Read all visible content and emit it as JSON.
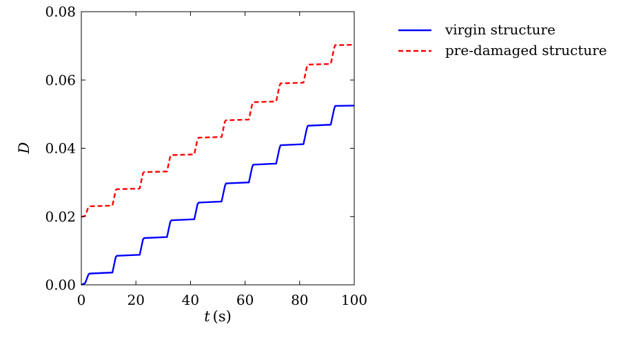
{
  "chart_data": {
    "type": "line",
    "xlabel_var": "t",
    "xlabel_unit": "(s)",
    "ylabel": "D",
    "xlim": [
      0,
      100
    ],
    "ylim": [
      0,
      0.08
    ],
    "x_ticks": [
      0,
      20,
      40,
      60,
      80,
      100
    ],
    "x_tick_labels": [
      "0",
      "20",
      "40",
      "60",
      "80",
      "100"
    ],
    "y_ticks": [
      0,
      0.02,
      0.04,
      0.06,
      0.08
    ],
    "y_tick_labels": [
      "0.00",
      "0.02",
      "0.04",
      "0.06",
      "0.08"
    ],
    "grid": false,
    "legend_position": "outside-right-top",
    "series": [
      {
        "name": "virgin structure",
        "color": "#0000ff",
        "dash": "solid",
        "x": [
          0,
          1.4,
          2.6,
          3.0,
          11.4,
          12.6,
          13.0,
          21.4,
          22.6,
          23.0,
          31.4,
          32.6,
          33.0,
          41.4,
          42.6,
          43.0,
          51.4,
          52.6,
          53.0,
          61.4,
          62.6,
          63.0,
          71.4,
          72.6,
          73.0,
          81.4,
          82.6,
          83.0,
          91.4,
          92.6,
          93.0,
          100
        ],
        "y": [
          0,
          0.0005,
          0.003,
          0.0033,
          0.0036,
          0.0081,
          0.0085,
          0.0088,
          0.0133,
          0.0137,
          0.014,
          0.0185,
          0.0189,
          0.0192,
          0.0237,
          0.0241,
          0.0244,
          0.0289,
          0.0297,
          0.03,
          0.0345,
          0.0352,
          0.0355,
          0.04,
          0.0409,
          0.0412,
          0.0457,
          0.0466,
          0.0469,
          0.0514,
          0.0524,
          0.0525
        ]
      },
      {
        "name": "pre-damaged structure",
        "color": "#ff0000",
        "dash": "dashed",
        "x": [
          0,
          1.4,
          2.6,
          3.0,
          11.4,
          12.6,
          13.0,
          21.4,
          22.6,
          23.0,
          31.4,
          32.6,
          33.0,
          41.4,
          42.6,
          43.0,
          51.4,
          52.6,
          53.0,
          61.4,
          62.6,
          63.0,
          71.4,
          72.6,
          73.0,
          81.4,
          82.6,
          83.0,
          91.4,
          92.6,
          93.0,
          100
        ],
        "y": [
          0.0199,
          0.0202,
          0.0228,
          0.023,
          0.0232,
          0.0277,
          0.028,
          0.0282,
          0.0327,
          0.033,
          0.0332,
          0.0377,
          0.038,
          0.0382,
          0.0427,
          0.0431,
          0.0433,
          0.0478,
          0.0482,
          0.0484,
          0.0529,
          0.0535,
          0.0537,
          0.0582,
          0.059,
          0.0592,
          0.0637,
          0.0645,
          0.0647,
          0.0692,
          0.0702,
          0.0703
        ]
      }
    ]
  }
}
